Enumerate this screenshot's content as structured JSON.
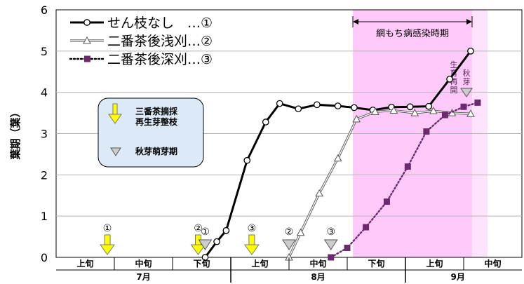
{
  "chart_data": {
    "type": "line",
    "ylabel": "葉期（葉）",
    "ylim": [
      0,
      6
    ],
    "yticks": [
      0,
      1,
      2,
      3,
      4,
      5,
      6
    ],
    "x_period_labels": [
      "上旬",
      "中旬",
      "下旬",
      "上旬",
      "中旬",
      "下旬",
      "上旬",
      "中旬"
    ],
    "x_month_labels": [
      "7月",
      "8月",
      "9月"
    ],
    "infection_period_label": "網もち病感染時期",
    "autumn_bud_label": "生育再開 秋芽",
    "legend_box": {
      "item1": "三番茶摘採\n再生芽整枝",
      "item2": "秋芽萌芽期"
    },
    "series": [
      {
        "name": "せん枝なし　…①",
        "color": "#000000",
        "style": "thick",
        "points": [
          [
            6.4,
            0.0
          ],
          [
            6.9,
            0.38
          ],
          [
            7.3,
            0.65
          ],
          [
            8.2,
            2.35
          ],
          [
            9.0,
            3.28
          ],
          [
            9.6,
            3.73
          ],
          [
            10.4,
            3.6
          ],
          [
            11.2,
            3.7
          ],
          [
            12.1,
            3.67
          ],
          [
            12.8,
            3.63
          ],
          [
            13.6,
            3.57
          ],
          [
            14.4,
            3.64
          ],
          [
            15.2,
            3.65
          ],
          [
            16.0,
            3.66
          ],
          [
            16.9,
            4.32
          ],
          [
            17.8,
            5.0
          ]
        ]
      },
      {
        "name": "二番茶後浅刈…②",
        "color": "#555555",
        "style": "double",
        "points": [
          [
            10.0,
            0.0
          ],
          [
            10.5,
            0.6
          ],
          [
            11.3,
            1.55
          ],
          [
            12.1,
            2.4
          ],
          [
            12.9,
            3.35
          ],
          [
            13.7,
            3.53
          ],
          [
            14.5,
            3.56
          ],
          [
            15.4,
            3.5
          ],
          [
            16.2,
            3.55
          ],
          [
            17.0,
            3.5
          ],
          [
            17.8,
            3.48
          ]
        ]
      },
      {
        "name": "二番茶後深刈…③",
        "color": "#6b2a6b",
        "style": "dotted",
        "points": [
          [
            11.8,
            0.0
          ],
          [
            12.5,
            0.23
          ],
          [
            13.3,
            0.73
          ],
          [
            14.2,
            1.35
          ],
          [
            15.1,
            2.2
          ],
          [
            15.9,
            3.05
          ],
          [
            16.7,
            3.45
          ],
          [
            17.5,
            3.65
          ],
          [
            18.1,
            3.75
          ]
        ]
      }
    ],
    "triangle_markers": [
      {
        "label": "①",
        "x": 6.4,
        "y": 0.3
      },
      {
        "label": "②",
        "x": 10.0,
        "y": 0.3
      },
      {
        "label": "③",
        "x": 11.8,
        "y": 0.3
      }
    ],
    "arrow_markers": [
      {
        "label": "①",
        "x": 2.2
      },
      {
        "label": "②",
        "x": 6.1
      },
      {
        "label": "③",
        "x": 8.4
      }
    ]
  }
}
